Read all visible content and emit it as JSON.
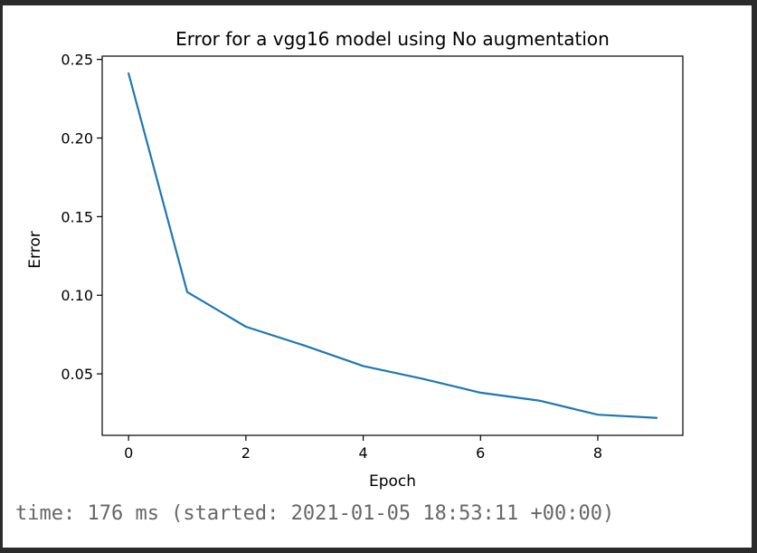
{
  "chart_data": {
    "type": "line",
    "title": "Error for a vgg16 model using No augmentation",
    "xlabel": "Epoch",
    "ylabel": "Error",
    "x": [
      0,
      1,
      2,
      3,
      4,
      5,
      6,
      7,
      8,
      9
    ],
    "series": [
      {
        "values": [
          0.241,
          0.102,
          0.08,
          0.068,
          0.055,
          0.047,
          0.038,
          0.033,
          0.024,
          0.022
        ],
        "color": "#1f77b4"
      }
    ],
    "xticks": [
      0,
      2,
      4,
      6,
      8
    ],
    "xtick_labels": [
      "0",
      "2",
      "4",
      "6",
      "8"
    ],
    "yticks": [
      0.05,
      0.1,
      0.15,
      0.2,
      0.25
    ],
    "ytick_labels": [
      "0.05",
      "0.10",
      "0.15",
      "0.20",
      "0.25"
    ],
    "xlim": [
      -0.45,
      9.45
    ],
    "ylim": [
      0.0109,
      0.2521
    ],
    "grid": false
  },
  "output": {
    "text": "time: 176 ms (started: 2021-01-05 18:53:11 +00:00)"
  }
}
